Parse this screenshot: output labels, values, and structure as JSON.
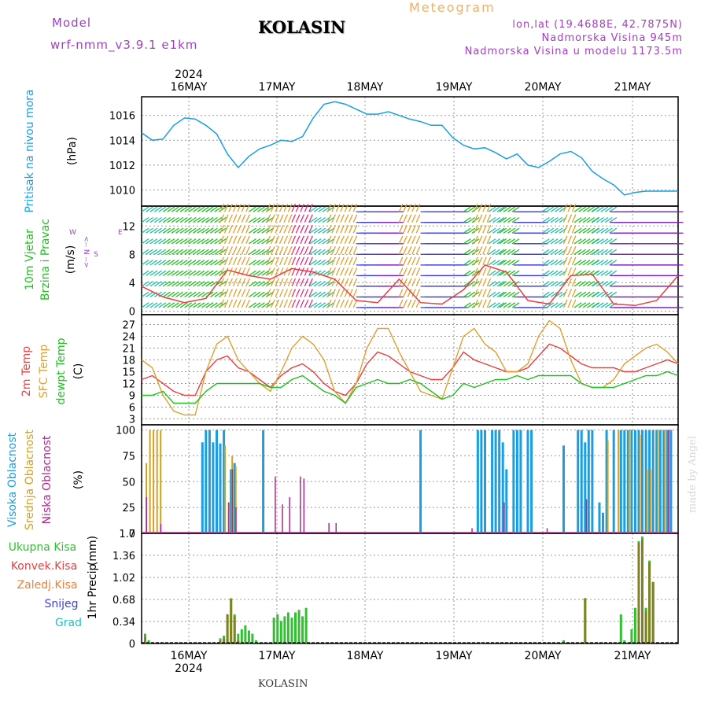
{
  "header": {
    "model_label": "Model",
    "model_name": "wrf-nmm_v3.9.1  e1km",
    "title": "KOLASIN",
    "meteogram_label": "Meteogram",
    "lonlat": "lon,lat (19.4688E, 42.7875N)",
    "elevation": "Nadmorska Visina 945m",
    "model_elevation": "Nadmorska Visina u modelu 1173.5m",
    "footer_station": "KOLASIN",
    "watermark": "made by Angel"
  },
  "colors": {
    "pressure": "#1a9ee0",
    "temp2m": "#e84040",
    "sfc": "#e0a030",
    "dew": "#20c020",
    "high_cloud": "#1a9ee0",
    "mid_cloud": "#d4a020",
    "low_cloud": "#b02890",
    "total_precip": "#30c030",
    "conv_precip": "#e84040",
    "freezing": "#f08030",
    "snow": "#4040e0",
    "hail": "#20c0c0",
    "model": "#a040c0",
    "meteogram": "#f0b060"
  },
  "chart_data": [
    {
      "type": "line",
      "panel": "pressure",
      "ylabel_1": "Pritisak na nivou mora",
      "ylabel_2": "(hPa)",
      "yticks": [
        1010,
        1012,
        1014,
        1016
      ],
      "ylim": [
        1008.7,
        1017.5
      ],
      "x_dates": [
        "16MAY",
        "17MAY",
        "18MAY",
        "19MAY",
        "20MAY",
        "21MAY"
      ],
      "year": "2024",
      "x_hours": [
        0,
        3,
        6,
        9,
        12,
        15,
        18,
        21,
        24,
        27,
        30,
        33,
        36,
        39,
        42,
        45,
        48,
        51,
        54,
        57,
        60,
        63,
        66,
        69,
        72,
        75,
        78,
        81,
        84,
        87,
        90,
        93,
        96,
        99,
        102,
        105,
        108,
        111,
        114,
        117,
        120,
        123,
        126,
        129,
        132,
        135,
        138,
        141,
        144,
        147,
        150
      ],
      "values": [
        1014.6,
        1014.0,
        1014.1,
        1015.2,
        1015.8,
        1015.7,
        1015.2,
        1014.5,
        1012.9,
        1011.8,
        1012.7,
        1013.3,
        1013.6,
        1014.0,
        1013.9,
        1014.3,
        1015.8,
        1016.9,
        1017.1,
        1016.9,
        1016.5,
        1016.1,
        1016.1,
        1016.3,
        1016.0,
        1015.7,
        1015.5,
        1015.2,
        1015.2,
        1014.2,
        1013.6,
        1013.3,
        1013.4,
        1013.0,
        1012.5,
        1012.9,
        1012.0,
        1011.8,
        1012.3,
        1012.9,
        1013.1,
        1012.6,
        1011.5,
        1010.9,
        1010.4,
        1009.6,
        1009.8,
        1009.9,
        1009.9,
        1009.9,
        1009.9
      ],
      "grid": true
    },
    {
      "type": "line",
      "panel": "wind",
      "ylabel_1": "10m Vjetar",
      "ylabel_2": "Brzina i Pravac",
      "ylabel_3": "(m/s)",
      "compass_n": "N",
      "compass_e": "E",
      "compass_w": "W",
      "compass_s": "S",
      "yticks": [
        0,
        4,
        8,
        12
      ],
      "ylim": [
        -0.5,
        14.8
      ],
      "x_hours": [
        0,
        6,
        12,
        18,
        24,
        30,
        36,
        42,
        48,
        54,
        60,
        66,
        72,
        78,
        84,
        90,
        96,
        102,
        108,
        114,
        120,
        126,
        132,
        138,
        144,
        150
      ],
      "values": [
        3.5,
        2.0,
        1.2,
        1.8,
        5.8,
        5.0,
        4.5,
        6.0,
        5.5,
        4.5,
        1.5,
        1.2,
        4.5,
        1.2,
        1.0,
        3.0,
        6.5,
        5.5,
        1.5,
        1.0,
        5.0,
        5.2,
        1.0,
        0.8,
        1.5,
        5.0
      ],
      "grid": true
    },
    {
      "type": "line",
      "panel": "temperature",
      "ylabel_1": "2m Temp",
      "ylabel_2": "SFC Temp",
      "ylabel_3": "dewpt Temp",
      "ylabel_4": "(C)",
      "yticks": [
        3,
        6,
        9,
        12,
        15,
        18,
        21,
        24,
        27
      ],
      "ylim": [
        1.5,
        29.5
      ],
      "x_hours": [
        0,
        3,
        6,
        9,
        12,
        15,
        18,
        21,
        24,
        27,
        30,
        33,
        36,
        39,
        42,
        45,
        48,
        51,
        54,
        57,
        60,
        63,
        66,
        69,
        72,
        75,
        78,
        81,
        84,
        87,
        90,
        93,
        96,
        99,
        102,
        105,
        108,
        111,
        114,
        117,
        120,
        123,
        126,
        129,
        132,
        135,
        138,
        141,
        144,
        147,
        150
      ],
      "series": [
        {
          "name": "2m Temp",
          "values": [
            13,
            14,
            12,
            10,
            9,
            9,
            15,
            18,
            19,
            16,
            15,
            13,
            11,
            14,
            16,
            17,
            15,
            12,
            10,
            9,
            12,
            17,
            20,
            19,
            17,
            15,
            14,
            13,
            13,
            16,
            20,
            18,
            17,
            16,
            15,
            15,
            16,
            19,
            22,
            21,
            19,
            17,
            16,
            16,
            16,
            15,
            15,
            16,
            17,
            18,
            17
          ]
        },
        {
          "name": "SFC Temp",
          "values": [
            18,
            16,
            9,
            5,
            4,
            4,
            15,
            22,
            24,
            18,
            15,
            12,
            10,
            15,
            21,
            24,
            22,
            18,
            10,
            7,
            12,
            21,
            26,
            26,
            20,
            15,
            10,
            9,
            8,
            16,
            24,
            26,
            22,
            20,
            15,
            15,
            17,
            24,
            28,
            26,
            18,
            12,
            11,
            11,
            13,
            17,
            19,
            21,
            22,
            20,
            17
          ]
        },
        {
          "name": "dewpt Temp",
          "values": [
            9,
            9,
            10,
            7,
            7,
            7,
            10,
            12,
            12,
            12,
            12,
            12,
            11,
            11,
            13,
            14,
            12,
            10,
            9,
            7,
            11,
            12,
            13,
            12,
            12,
            13,
            12,
            10,
            8,
            9,
            12,
            11,
            12,
            13,
            13,
            14,
            13,
            14,
            14,
            14,
            14,
            12,
            11,
            11,
            11,
            12,
            13,
            14,
            14,
            15,
            14
          ]
        }
      ],
      "grid": true
    },
    {
      "type": "bar",
      "panel": "cloud",
      "ylabel_1": "Visoka Oblacnost",
      "ylabel_2": "Srednja Oblacnost",
      "ylabel_3": "Niska Oblacnost",
      "ylabel_4": "(%)",
      "yticks": [
        0,
        25,
        50,
        75,
        100
      ],
      "ylim": [
        0,
        105
      ],
      "high_points": [
        [
          17,
          88
        ],
        [
          18,
          100
        ],
        [
          19,
          100
        ],
        [
          20,
          88
        ],
        [
          21,
          100
        ],
        [
          22,
          87
        ],
        [
          23,
          100
        ],
        [
          25,
          62
        ],
        [
          26,
          68
        ],
        [
          34,
          100
        ],
        [
          78,
          100
        ],
        [
          94,
          100
        ],
        [
          95,
          100
        ],
        [
          96,
          100
        ],
        [
          98,
          100
        ],
        [
          99,
          100
        ],
        [
          100,
          100
        ],
        [
          101,
          88
        ],
        [
          102,
          62
        ],
        [
          104,
          100
        ],
        [
          105,
          100
        ],
        [
          106,
          100
        ],
        [
          108,
          100
        ],
        [
          109,
          100
        ],
        [
          118,
          85
        ],
        [
          122,
          100
        ],
        [
          123,
          100
        ],
        [
          124,
          88
        ],
        [
          125,
          100
        ],
        [
          126,
          100
        ],
        [
          128,
          30
        ],
        [
          129,
          20
        ],
        [
          130,
          100
        ],
        [
          132,
          100
        ],
        [
          134,
          100
        ],
        [
          135,
          100
        ],
        [
          136,
          100
        ],
        [
          137,
          100
        ],
        [
          138,
          100
        ],
        [
          139,
          100
        ],
        [
          140,
          100
        ],
        [
          141,
          100
        ],
        [
          142,
          100
        ],
        [
          143,
          100
        ],
        [
          144,
          100
        ],
        [
          145,
          100
        ],
        [
          146,
          100
        ],
        [
          147,
          100
        ],
        [
          148,
          100
        ]
      ],
      "mid_points": [
        [
          1,
          68
        ],
        [
          2,
          100
        ],
        [
          3,
          100
        ],
        [
          4,
          100
        ],
        [
          5,
          100
        ],
        [
          23,
          85
        ],
        [
          24,
          30
        ],
        [
          25,
          75
        ],
        [
          26,
          65
        ],
        [
          130,
          90
        ],
        [
          133,
          100
        ],
        [
          136,
          100
        ],
        [
          139,
          95
        ],
        [
          141,
          62
        ],
        [
          142,
          62
        ],
        [
          144,
          100
        ],
        [
          146,
          100
        ]
      ],
      "low_points": [
        [
          1,
          35
        ],
        [
          5,
          9
        ],
        [
          24,
          30
        ],
        [
          25,
          62
        ],
        [
          26,
          25
        ],
        [
          37,
          55
        ],
        [
          39,
          28
        ],
        [
          41,
          35
        ],
        [
          44,
          55
        ],
        [
          45,
          53
        ],
        [
          52,
          10
        ],
        [
          54,
          10
        ],
        [
          92,
          5
        ],
        [
          101,
          30
        ],
        [
          113,
          5
        ],
        [
          124,
          33
        ],
        [
          147,
          100
        ]
      ],
      "grid": true
    },
    {
      "type": "bar",
      "panel": "precip",
      "ylabel_1": "1hr Precip",
      "ylabel_2": "(mm)",
      "legend": [
        "Ukupna Kisa",
        "Konvek.Kisa",
        "Zaledj.Kisa",
        "Snijeg",
        "Grad"
      ],
      "yticks": [
        0,
        0.34,
        0.68,
        1.02,
        1.36,
        1.7
      ],
      "ylim": [
        0,
        1.7
      ],
      "total_points": [
        [
          1,
          0.15
        ],
        [
          2,
          0.05
        ],
        [
          22,
          0.08
        ],
        [
          23,
          0.12
        ],
        [
          24,
          0.45
        ],
        [
          25,
          0.7
        ],
        [
          26,
          0.45
        ],
        [
          27,
          0.15
        ],
        [
          28,
          0.22
        ],
        [
          29,
          0.28
        ],
        [
          30,
          0.2
        ],
        [
          31,
          0.15
        ],
        [
          32,
          0.05
        ],
        [
          37,
          0.4
        ],
        [
          38,
          0.45
        ],
        [
          39,
          0.35
        ],
        [
          40,
          0.42
        ],
        [
          41,
          0.48
        ],
        [
          42,
          0.4
        ],
        [
          43,
          0.48
        ],
        [
          44,
          0.52
        ],
        [
          45,
          0.42
        ],
        [
          46,
          0.55
        ],
        [
          95,
          0.02
        ],
        [
          118,
          0.05
        ],
        [
          124,
          0.7
        ],
        [
          134,
          0.45
        ],
        [
          135,
          0.05
        ],
        [
          137,
          0.22
        ],
        [
          138,
          0.55
        ],
        [
          139,
          1.58
        ],
        [
          140,
          1.65
        ],
        [
          141,
          0.55
        ],
        [
          142,
          1.28
        ],
        [
          143,
          0.95
        ]
      ],
      "conv_points": [
        [
          1,
          0.1
        ],
        [
          22,
          0.05
        ],
        [
          23,
          0.08
        ],
        [
          24,
          0.45
        ],
        [
          25,
          0.68
        ],
        [
          26,
          0.42
        ],
        [
          27,
          0.05
        ],
        [
          124,
          0.7
        ],
        [
          139,
          1.55
        ],
        [
          140,
          1.6
        ],
        [
          141,
          0.5
        ],
        [
          142,
          1.25
        ],
        [
          143,
          0.95
        ]
      ],
      "grid": true
    }
  ]
}
